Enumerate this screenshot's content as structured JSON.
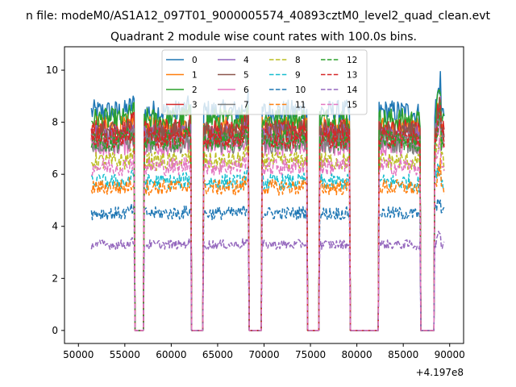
{
  "suptitle": "n file: modeM0/AS1A12_097T01_9000005574_40893cztM0_level2_quad_clean.evt",
  "chart_data": {
    "type": "line",
    "title": "Quadrant 2 module wise count rates with 100.0s bins.",
    "xlabel": "",
    "ylabel": "",
    "x_offset_label": "+4.197e8",
    "xlim": [
      48500,
      91500
    ],
    "ylim": [
      -0.5,
      10.9
    ],
    "x_ticks": [
      50000,
      55000,
      60000,
      65000,
      70000,
      75000,
      80000,
      85000,
      90000
    ],
    "x_tick_labels": [
      "50000",
      "55000",
      "60000",
      "65000",
      "70000",
      "75000",
      "80000",
      "85000",
      "90000"
    ],
    "y_ticks": [
      0,
      2,
      4,
      6,
      8,
      10
    ],
    "y_tick_labels": [
      "0",
      "2",
      "4",
      "6",
      "8",
      "10"
    ],
    "bin_seconds": 100,
    "data_start": 51400,
    "data_end": 89400,
    "good_time_intervals": [
      [
        51400,
        56000
      ],
      [
        57100,
        62100
      ],
      [
        63500,
        68300
      ],
      [
        69800,
        74600
      ],
      [
        76000,
        79200
      ],
      [
        82400,
        86800
      ],
      [
        88400,
        89400
      ]
    ],
    "legend": {
      "location": "upper center",
      "ncol": 4
    },
    "series": [
      {
        "name": "0",
        "color": "#1f77b4",
        "dash": "solid",
        "mean": 8.4
      },
      {
        "name": "1",
        "color": "#ff7f0e",
        "dash": "solid",
        "mean": 7.8
      },
      {
        "name": "2",
        "color": "#2ca02c",
        "dash": "solid",
        "mean": 8.1
      },
      {
        "name": "3",
        "color": "#d62728",
        "dash": "solid",
        "mean": 7.7
      },
      {
        "name": "4",
        "color": "#9467bd",
        "dash": "solid",
        "mean": 7.5
      },
      {
        "name": "5",
        "color": "#8c564b",
        "dash": "solid",
        "mean": 7.6
      },
      {
        "name": "6",
        "color": "#e377c2",
        "dash": "solid",
        "mean": 7.1
      },
      {
        "name": "7",
        "color": "#7f7f7f",
        "dash": "solid",
        "mean": 7.2
      },
      {
        "name": "8",
        "color": "#bcbd22",
        "dash": "dashed",
        "mean": 6.5
      },
      {
        "name": "9",
        "color": "#17becf",
        "dash": "dashed",
        "mean": 5.7
      },
      {
        "name": "10",
        "color": "#1f77b4",
        "dash": "dashed",
        "mean": 4.5
      },
      {
        "name": "11",
        "color": "#ff7f0e",
        "dash": "dashed",
        "mean": 5.5
      },
      {
        "name": "12",
        "color": "#2ca02c",
        "dash": "dashed",
        "mean": 7.3
      },
      {
        "name": "13",
        "color": "#d62728",
        "dash": "dashed",
        "mean": 7.4
      },
      {
        "name": "14",
        "color": "#9467bd",
        "dash": "dashed",
        "mean": 3.3
      },
      {
        "name": "15",
        "color": "#e377c2",
        "dash": "dashed",
        "mean": 6.3
      }
    ]
  }
}
